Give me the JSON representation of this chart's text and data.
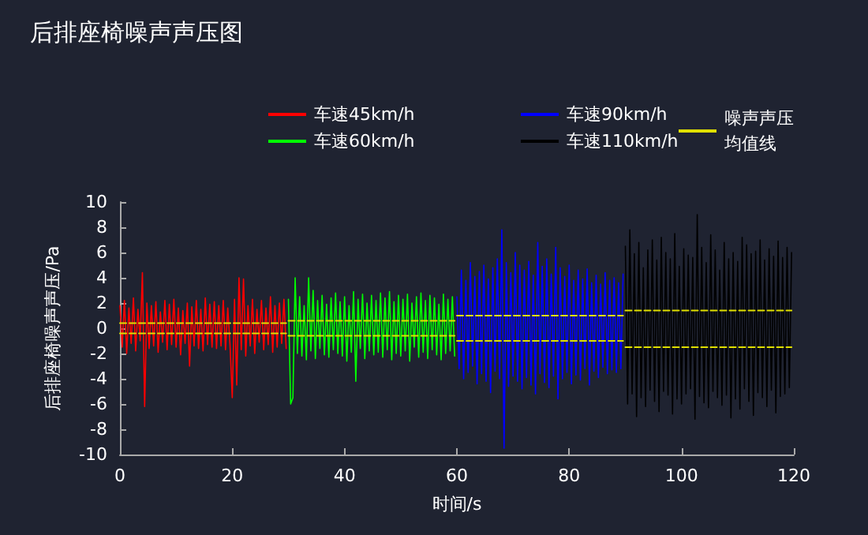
{
  "chart_data": {
    "type": "line",
    "title": "后排座椅噪声声压图",
    "xlabel": "时间/s",
    "ylabel": "后排座椅噪声声压/Pa",
    "xlim": [
      0,
      120
    ],
    "xticks": [
      0,
      20,
      40,
      60,
      80,
      100,
      120
    ],
    "ylim": [
      -10,
      10
    ],
    "yticks": [
      -10,
      -8,
      -6,
      -4,
      -2,
      0,
      2,
      4,
      6,
      8,
      10
    ],
    "legend": "top right",
    "marker": "none",
    "series": [
      {
        "name": "车速45km/h",
        "color": "#ff0000",
        "x": [
          0,
          0.4,
          0.8,
          1.2,
          1.6,
          2,
          2.4,
          2.8,
          3.2,
          3.6,
          4,
          4.4,
          4.8,
          5.2,
          5.6,
          6,
          6.4,
          6.8,
          7.2,
          7.6,
          8,
          8.4,
          8.8,
          9.2,
          9.6,
          10,
          10.4,
          10.8,
          11.2,
          11.6,
          12,
          12.4,
          12.8,
          13.2,
          13.6,
          14,
          14.4,
          14.8,
          15.2,
          15.6,
          16,
          16.4,
          16.8,
          17.2,
          17.6,
          18,
          18.4,
          18.8,
          19.2,
          19.6,
          20,
          20.4,
          20.8,
          21.2,
          21.6,
          22,
          22.4,
          22.8,
          23.2,
          23.6,
          24,
          24.4,
          24.8,
          25.2,
          25.6,
          26,
          26.4,
          26.8,
          27.2,
          27.6,
          28,
          28.4,
          28.8,
          29.2,
          29.6
        ],
        "values": [
          1.8,
          -1.5,
          2.2,
          -2,
          1.6,
          -1.2,
          2.4,
          -1.8,
          1.5,
          -1,
          4.4,
          -6.2,
          2,
          -1.6,
          1.8,
          -1.4,
          2.1,
          -1.9,
          1.3,
          -1.1,
          2.2,
          -1.7,
          1.9,
          -1.3,
          2.3,
          -1.5,
          1.6,
          -2.1,
          1.4,
          -1.2,
          2,
          -3,
          1.7,
          -1.4,
          2.2,
          -1.6,
          1.5,
          -1.8,
          2.4,
          -1.3,
          1.9,
          -1.5,
          2.1,
          -1.6,
          1.8,
          -1.4,
          2.2,
          -1.7,
          1.6,
          -1.3,
          -5.5,
          2.3,
          -4.5,
          4,
          -1.7,
          3.9,
          -2.2,
          1.8,
          -1.4,
          2.3,
          -2,
          1.5,
          -1.1,
          2.2,
          -1.7,
          1.6,
          -1.3,
          2.5,
          -1.9,
          1.8,
          -1.5,
          2,
          -1.2,
          2.3,
          -1.6
        ]
      },
      {
        "name": "车速60km/h",
        "color": "#00ff00",
        "x": [
          30,
          30.4,
          30.8,
          31.2,
          31.6,
          32,
          32.4,
          32.8,
          33.2,
          33.6,
          34,
          34.4,
          34.8,
          35.2,
          35.6,
          36,
          36.4,
          36.8,
          37.2,
          37.6,
          38,
          38.4,
          38.8,
          39.2,
          39.6,
          40,
          40.4,
          40.8,
          41.2,
          41.6,
          42,
          42.4,
          42.8,
          43.2,
          43.6,
          44,
          44.4,
          44.8,
          45.2,
          45.6,
          46,
          46.4,
          46.8,
          47.2,
          47.6,
          48,
          48.4,
          48.8,
          49.2,
          49.6,
          50,
          50.4,
          50.8,
          51.2,
          51.6,
          52,
          52.4,
          52.8,
          53.2,
          53.6,
          54,
          54.4,
          54.8,
          55.2,
          55.6,
          56,
          56.4,
          56.8,
          57.2,
          57.6,
          58,
          58.4,
          58.8,
          59.2,
          59.6
        ],
        "values": [
          2.3,
          -6,
          -5.5,
          4,
          -2,
          2.5,
          -2.2,
          1.8,
          -2.5,
          4,
          -1.8,
          3,
          -2.4,
          2.2,
          -1.6,
          2.6,
          -2.1,
          1.9,
          -2.3,
          2.4,
          -1.7,
          2.8,
          -2,
          2.1,
          -2.2,
          2.5,
          -2.6,
          1.8,
          -1.9,
          2.9,
          -4.2,
          2.3,
          -1.6,
          2.7,
          -2.4,
          2,
          -1.8,
          2.6,
          -2.1,
          2.2,
          -1.9,
          2.8,
          -2.3,
          2.4,
          -1.7,
          2.9,
          -2.5,
          2.1,
          -2,
          2.6,
          -2.2,
          2.3,
          -1.8,
          2.7,
          -2.6,
          2,
          -1.5,
          2.5,
          -2.3,
          2.8,
          -1.9,
          2.2,
          -2.4,
          2.6,
          -1.7,
          2.4,
          -2.1,
          1.9,
          -2.5,
          2.7,
          -2,
          2.3,
          -1.8,
          2.5,
          -2.2
        ]
      },
      {
        "name": "车速90km/h",
        "color": "#0000ff",
        "x": [
          60,
          60.4,
          60.8,
          61.2,
          61.6,
          62,
          62.4,
          62.8,
          63.2,
          63.6,
          64,
          64.4,
          64.8,
          65.2,
          65.6,
          66,
          66.4,
          66.8,
          67.2,
          67.6,
          68,
          68.4,
          68.8,
          69.2,
          69.6,
          70,
          70.4,
          70.8,
          71.2,
          71.6,
          72,
          72.4,
          72.8,
          73.2,
          73.6,
          74,
          74.4,
          74.8,
          75.2,
          75.6,
          76,
          76.4,
          76.8,
          77.2,
          77.6,
          78,
          78.4,
          78.8,
          79.2,
          79.6,
          80,
          80.4,
          80.8,
          81.2,
          81.6,
          82,
          82.4,
          82.8,
          83.2,
          83.6,
          84,
          84.4,
          84.8,
          85.2,
          85.6,
          86,
          86.4,
          86.8,
          87.2,
          87.6,
          88,
          88.4,
          88.8,
          89.2,
          89.6
        ],
        "values": [
          2.5,
          -3.2,
          4.6,
          -4,
          3.8,
          -3.5,
          5.2,
          -3,
          4.1,
          -4.4,
          4.5,
          -3.6,
          5,
          -4.2,
          3.9,
          -5.1,
          4.8,
          -3.4,
          5.5,
          -4,
          7.8,
          -9.5,
          5.2,
          -4.6,
          4.4,
          -3.8,
          6,
          -4.2,
          5,
          -4.8,
          4.6,
          -3.9,
          5.3,
          -4.5,
          4.2,
          -5.2,
          6.8,
          -3.6,
          4.9,
          -4.3,
          5.5,
          -4.7,
          4.3,
          -3.8,
          6.4,
          -5.6,
          4.8,
          -4,
          4.1,
          -3.5,
          5,
          -4.4,
          3.8,
          -3.7,
          4.6,
          -4.1,
          3.9,
          -3.2,
          4.7,
          -4.5,
          3.6,
          -3.4,
          4.2,
          -3.9,
          3.5,
          -3.1,
          4.4,
          -3.6,
          3.8,
          -3.3,
          4,
          -3.5,
          3.6,
          -3.2,
          4.3
        ]
      },
      {
        "name": "车速110km/h",
        "color": "#000000",
        "x": [
          90,
          90.4,
          90.8,
          91.2,
          91.6,
          92,
          92.4,
          92.8,
          93.2,
          93.6,
          94,
          94.4,
          94.8,
          95.2,
          95.6,
          96,
          96.4,
          96.8,
          97.2,
          97.6,
          98,
          98.4,
          98.8,
          99.2,
          99.6,
          100,
          100.4,
          100.8,
          101.2,
          101.6,
          102,
          102.4,
          102.8,
          103.2,
          103.6,
          104,
          104.4,
          104.8,
          105.2,
          105.6,
          106,
          106.4,
          106.8,
          107.2,
          107.6,
          108,
          108.4,
          108.8,
          109.2,
          109.6,
          110,
          110.4,
          110.8,
          111.2,
          111.6,
          112,
          112.4,
          112.8,
          113.2,
          113.6,
          114,
          114.4,
          114.8,
          115.2,
          115.6,
          116,
          116.4,
          116.8,
          117.2,
          117.6,
          118,
          118.4,
          118.8,
          119.2,
          119.6
        ],
        "values": [
          6.5,
          -6,
          7.8,
          -5.2,
          5.9,
          -7,
          6.8,
          -5.5,
          4.8,
          -6.2,
          6.2,
          -4.9,
          7,
          -5.8,
          5.4,
          -6.6,
          7.2,
          -5,
          6,
          -5.3,
          5.5,
          -6.8,
          7.5,
          -5.6,
          4.9,
          -6,
          6.3,
          -5.2,
          5.8,
          -4.8,
          5.6,
          -7.2,
          9,
          -5.4,
          6.4,
          -5.9,
          5.2,
          -6.3,
          7.4,
          -5,
          6.2,
          -5.5,
          4.6,
          -6.1,
          6.8,
          -5.3,
          5.5,
          -7.1,
          6,
          -5.6,
          5.3,
          -6.4,
          7.2,
          -4.8,
          6.6,
          -5.8,
          5.9,
          -6.9,
          6.1,
          -5.1,
          7,
          -5.5,
          5.4,
          -6.2,
          6.3,
          -4.9,
          5.7,
          -6.7,
          6.9,
          -5.4,
          5.6,
          -5.2,
          6.4,
          -4.7,
          6
        ]
      },
      {
        "name": "噪声声压均值线",
        "color": "#e0e000",
        "line_style": "dashed",
        "x": [
          0,
          29.6
        ],
        "values": [
          0.4,
          0.4
        ]
      },
      {
        "color": "#e0e000",
        "line_style": "dashed",
        "x": [
          0,
          29.6
        ],
        "values": [
          -0.4,
          -0.4
        ]
      },
      {
        "color": "#e0e000",
        "line_style": "dashed",
        "x": [
          30,
          59.6
        ],
        "values": [
          0.6,
          0.6
        ]
      },
      {
        "color": "#e0e000",
        "line_style": "dashed",
        "x": [
          30,
          59.6
        ],
        "values": [
          -0.6,
          -0.6
        ]
      },
      {
        "color": "#e0e000",
        "line_style": "dashed",
        "x": [
          60,
          89.6
        ],
        "values": [
          1,
          1
        ]
      },
      {
        "color": "#e0e000",
        "line_style": "dashed",
        "x": [
          60,
          89.6
        ],
        "values": [
          -1,
          -1
        ]
      },
      {
        "color": "#e0e000",
        "line_style": "dashed",
        "x": [
          90,
          119.6
        ],
        "values": [
          1.4,
          1.4
        ]
      },
      {
        "color": "#e0e000",
        "line_style": "dashed",
        "x": [
          90,
          119.6
        ],
        "values": [
          -1.5,
          -1.5
        ]
      }
    ]
  }
}
